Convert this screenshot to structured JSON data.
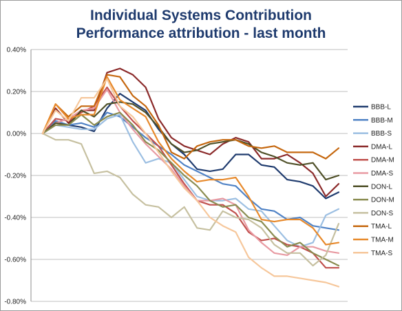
{
  "chart_data": {
    "type": "line",
    "title": "Individual Systems Contribution",
    "subtitle": "Performance attribution - last month",
    "xlabel": "",
    "ylabel": "",
    "ylim": [
      -0.8,
      0.4
    ],
    "y_ticks": [
      "0.40%",
      "0.20%",
      "0.00%",
      "-0.20%",
      "-0.40%",
      "-0.60%",
      "-0.80%"
    ],
    "y_tick_values": [
      0.4,
      0.2,
      0.0,
      -0.2,
      -0.4,
      -0.6,
      -0.8
    ],
    "y_unit": "%",
    "grid": true,
    "legend": "right",
    "x": [
      1,
      2,
      3,
      4,
      5,
      6,
      7,
      8,
      9,
      10,
      11,
      12,
      13,
      14,
      15,
      16,
      17,
      18,
      19,
      20,
      21,
      22,
      23,
      24
    ],
    "series": [
      {
        "name": "BBB-L",
        "color": "#1f3b6e",
        "values": [
          0.0,
          0.06,
          0.04,
          0.03,
          0.01,
          0.12,
          0.19,
          0.15,
          0.11,
          0.02,
          -0.05,
          -0.1,
          -0.17,
          -0.18,
          -0.17,
          -0.1,
          -0.1,
          -0.15,
          -0.16,
          -0.22,
          -0.23,
          -0.25,
          -0.31,
          -0.28
        ]
      },
      {
        "name": "BBB-M",
        "color": "#4f82c5",
        "values": [
          0.0,
          0.06,
          0.04,
          0.05,
          0.03,
          0.1,
          0.08,
          0.03,
          -0.02,
          -0.06,
          -0.1,
          -0.15,
          -0.18,
          -0.21,
          -0.24,
          -0.25,
          -0.31,
          -0.36,
          -0.37,
          -0.41,
          -0.4,
          -0.44,
          -0.45,
          -0.46
        ]
      },
      {
        "name": "BBB-S",
        "color": "#9cbfe2",
        "values": [
          0.0,
          0.04,
          0.03,
          0.02,
          0.02,
          0.07,
          0.09,
          -0.04,
          -0.14,
          -0.12,
          -0.14,
          -0.22,
          -0.3,
          -0.32,
          -0.32,
          -0.31,
          -0.36,
          -0.37,
          -0.44,
          -0.51,
          -0.54,
          -0.52,
          -0.39,
          -0.36
        ]
      },
      {
        "name": "DMA-L",
        "color": "#8b2a2a",
        "values": [
          0.0,
          0.12,
          0.05,
          0.11,
          0.11,
          0.29,
          0.31,
          0.28,
          0.22,
          0.07,
          -0.02,
          -0.06,
          -0.08,
          -0.1,
          -0.05,
          -0.02,
          -0.04,
          -0.12,
          -0.12,
          -0.1,
          -0.14,
          -0.19,
          -0.3,
          -0.24
        ]
      },
      {
        "name": "DMA-M",
        "color": "#c0504d",
        "values": [
          0.0,
          0.07,
          0.06,
          0.1,
          0.13,
          0.22,
          0.13,
          0.06,
          0.0,
          -0.06,
          -0.15,
          -0.24,
          -0.32,
          -0.34,
          -0.34,
          -0.38,
          -0.47,
          -0.51,
          -0.5,
          -0.53,
          -0.54,
          -0.57,
          -0.64,
          -0.64
        ]
      },
      {
        "name": "DMA-S",
        "color": "#e89aa2",
        "values": [
          0.0,
          0.05,
          0.07,
          0.11,
          0.12,
          0.21,
          0.1,
          0.02,
          -0.05,
          -0.11,
          -0.17,
          -0.25,
          -0.32,
          -0.32,
          -0.31,
          -0.34,
          -0.46,
          -0.52,
          -0.57,
          -0.58,
          -0.54,
          -0.54,
          -0.56,
          -0.57
        ]
      },
      {
        "name": "DON-L",
        "color": "#4f5028",
        "values": [
          0.0,
          0.05,
          0.04,
          0.11,
          0.08,
          0.14,
          0.15,
          0.14,
          0.1,
          0.03,
          -0.05,
          -0.09,
          -0.08,
          -0.05,
          -0.04,
          -0.03,
          -0.05,
          -0.09,
          -0.11,
          -0.14,
          -0.15,
          -0.14,
          -0.22,
          -0.2
        ]
      },
      {
        "name": "DON-M",
        "color": "#8a8c50",
        "values": [
          0.0,
          0.04,
          0.04,
          0.09,
          0.04,
          0.08,
          0.1,
          0.04,
          -0.04,
          -0.08,
          -0.14,
          -0.2,
          -0.25,
          -0.32,
          -0.35,
          -0.34,
          -0.4,
          -0.42,
          -0.49,
          -0.54,
          -0.52,
          -0.57,
          -0.6,
          -0.63
        ]
      },
      {
        "name": "DON-S",
        "color": "#c6c0a0",
        "values": [
          0.0,
          -0.03,
          -0.03,
          -0.05,
          -0.19,
          -0.18,
          -0.21,
          -0.29,
          -0.34,
          -0.35,
          -0.4,
          -0.35,
          -0.45,
          -0.46,
          -0.37,
          -0.4,
          -0.41,
          -0.45,
          -0.53,
          -0.57,
          -0.57,
          -0.63,
          -0.58,
          -0.43
        ]
      },
      {
        "name": "TMA-L",
        "color": "#c5670e",
        "values": [
          0.0,
          0.14,
          0.08,
          0.13,
          0.13,
          0.28,
          0.27,
          0.18,
          0.13,
          0.04,
          -0.09,
          -0.12,
          -0.06,
          -0.04,
          -0.03,
          -0.03,
          -0.06,
          -0.07,
          -0.06,
          -0.09,
          -0.09,
          -0.09,
          -0.12,
          -0.07
        ]
      },
      {
        "name": "TMA-M",
        "color": "#e7892b",
        "values": [
          0.0,
          0.14,
          0.07,
          0.09,
          0.09,
          0.27,
          0.16,
          0.12,
          0.08,
          -0.04,
          -0.12,
          -0.18,
          -0.23,
          -0.22,
          -0.22,
          -0.21,
          -0.3,
          -0.41,
          -0.42,
          -0.41,
          -0.41,
          -0.45,
          -0.53,
          -0.52
        ]
      },
      {
        "name": "TMA-S",
        "color": "#f6c79b",
        "values": [
          0.0,
          0.11,
          0.06,
          0.17,
          0.17,
          0.26,
          0.13,
          0.08,
          0.0,
          -0.09,
          -0.18,
          -0.26,
          -0.32,
          -0.4,
          -0.44,
          -0.47,
          -0.59,
          -0.64,
          -0.68,
          -0.68,
          -0.69,
          -0.7,
          -0.71,
          -0.73
        ]
      }
    ]
  }
}
